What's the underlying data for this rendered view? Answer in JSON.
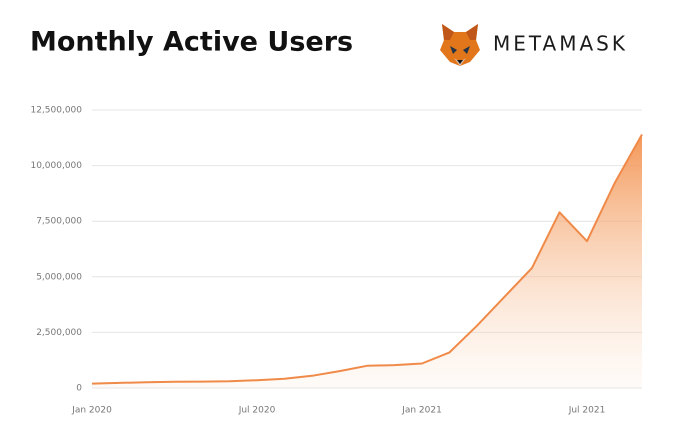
{
  "chart_data": {
    "type": "area",
    "title": "Monthly Active Users",
    "brand": "METAMASK",
    "categories": [
      "Jan 2020",
      null,
      null,
      null,
      null,
      null,
      "Jul 2020",
      null,
      null,
      null,
      null,
      null,
      "Jan 2021",
      null,
      null,
      null,
      null,
      null,
      "Jul 2021",
      null,
      null
    ],
    "series": [
      {
        "name": "Monthly Active Users",
        "color": "#f08a48",
        "values": [
          200000,
          230000,
          260000,
          280000,
          290000,
          300000,
          350000,
          420000,
          550000,
          760000,
          1000000,
          1030000,
          1100000,
          1600000,
          2800000,
          4100000,
          5400000,
          7900000,
          6600000,
          9200000,
          11400000
        ]
      }
    ],
    "ylim": [
      0,
      12500000
    ],
    "yticks": [
      0,
      {
        "value": 2500000,
        "label": "2,500,000"
      },
      {
        "value": 5000000,
        "label": "5,000,000"
      },
      {
        "value": 7500000,
        "label": "7,500,000"
      },
      {
        "value": 10000000,
        "label": "10,000,000"
      },
      {
        "value": 12500000,
        "label": "12,500,000"
      }
    ],
    "grid": true
  }
}
